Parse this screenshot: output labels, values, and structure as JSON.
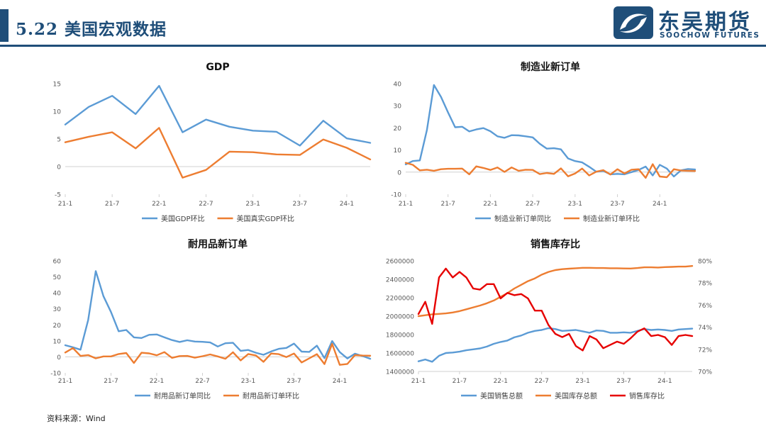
{
  "header": {
    "title": "5.22 美国宏观数据"
  },
  "logo": {
    "name_cn": "东吴期货",
    "name_en": "SOOCHOW FUTURES"
  },
  "footer": {
    "source": "资料来源：Wind"
  },
  "colors": {
    "blue": "#5b9bd5",
    "orange": "#ed7d31",
    "red": "#e60000",
    "brand": "#1f4e79"
  },
  "chart_data": [
    {
      "id": "gdp",
      "type": "line",
      "title": "GDP",
      "x_tick_labels": [
        "21-1",
        "21-7",
        "22-1",
        "22-7",
        "23-1",
        "23-7",
        "24-1"
      ],
      "x_tick_positions": [
        0,
        2,
        4,
        6,
        8,
        10,
        12
      ],
      "ylim": [
        -5,
        15
      ],
      "yticks": [
        -5,
        0,
        5,
        10,
        15
      ],
      "grid": false,
      "legend": "bottom",
      "series": [
        {
          "name": "美国GDP环比",
          "color": "#5b9bd5",
          "values": [
            7.6,
            10.8,
            12.8,
            9.5,
            14.6,
            6.2,
            8.5,
            7.2,
            6.5,
            6.3,
            3.8,
            8.3,
            5.1,
            4.3
          ]
        },
        {
          "name": "美国真实GDP环比",
          "color": "#ed7d31",
          "values": [
            4.4,
            5.4,
            6.2,
            3.3,
            7.0,
            -2.0,
            -0.6,
            2.7,
            2.6,
            2.2,
            2.1,
            4.9,
            3.4,
            1.3
          ]
        }
      ]
    },
    {
      "id": "manufacturing-orders",
      "type": "line",
      "title": "制造业新订单",
      "x_tick_labels": [
        "21-1",
        "21-7",
        "22-1",
        "22-7",
        "23-1",
        "23-7",
        "24-1"
      ],
      "x_tick_positions": [
        0,
        6,
        12,
        18,
        24,
        30,
        36
      ],
      "ylim": [
        -10,
        40
      ],
      "yticks": [
        -10,
        0,
        10,
        20,
        30,
        40
      ],
      "grid": false,
      "legend": "bottom",
      "series": [
        {
          "name": "制造业新订单同比",
          "color": "#5b9bd5",
          "values": [
            3.5,
            5,
            5.3,
            19,
            39.4,
            34,
            27,
            20.3,
            20.5,
            18.4,
            19.3,
            19.9,
            18.5,
            16.2,
            15.5,
            16.7,
            16.6,
            16.2,
            15.7,
            12.8,
            10.6,
            10.8,
            10.3,
            6.2,
            5,
            4.4,
            2.4,
            0.2,
            0.5,
            -1,
            -0.8,
            -1,
            0,
            1,
            2.5,
            -1.5,
            3.3,
            1.6,
            -2,
            0.8,
            1.4,
            1.2
          ]
        },
        {
          "name": "制造业新订单环比",
          "color": "#ed7d31",
          "values": [
            4.2,
            3.3,
            0.8,
            1.1,
            0.6,
            1.3,
            1.5,
            1.5,
            1.6,
            -1,
            2.6,
            1.9,
            1,
            2.1,
            0.1,
            2.1,
            0.6,
            1.1,
            1,
            -0.9,
            -0.4,
            -0.8,
            1.7,
            -1.9,
            -0.6,
            1.6,
            -1.5,
            0.2,
            0.9,
            -1.1,
            1.3,
            -0.6,
            1.1,
            1.3,
            -2.6,
            3.6,
            -2,
            -2.3,
            1.3,
            0.7,
            0.6,
            0.5
          ]
        }
      ]
    },
    {
      "id": "durable-goods",
      "type": "line",
      "title": "耐用品新订单",
      "x_tick_labels": [
        "21-1",
        "21-7",
        "22-1",
        "22-7",
        "23-1",
        "23-7",
        "24-1"
      ],
      "x_tick_positions": [
        0,
        6,
        12,
        18,
        24,
        30,
        36
      ],
      "ylim": [
        -10,
        60
      ],
      "yticks": [
        -10,
        0,
        10,
        20,
        30,
        40,
        50,
        60
      ],
      "grid": false,
      "legend": "bottom",
      "series": [
        {
          "name": "耐用品新订单同比",
          "color": "#5b9bd5",
          "values": [
            7.3,
            6,
            4.5,
            23,
            53.6,
            38,
            28,
            16,
            16.8,
            12.2,
            11.8,
            13.8,
            14,
            12.2,
            10.5,
            9.3,
            10.4,
            9.6,
            9.4,
            9,
            6.5,
            8.5,
            8.8,
            3.8,
            4.3,
            2.6,
            1.3,
            3.4,
            5,
            5.6,
            8.3,
            3.3,
            3.1,
            7,
            -0.8,
            9.9,
            3,
            -1,
            2,
            0.5,
            -1.2
          ]
        },
        {
          "name": "耐用品新订单环比",
          "color": "#ed7d31",
          "values": [
            2.7,
            5.5,
            0.6,
            1.1,
            -0.9,
            0.3,
            0.3,
            1.8,
            2.4,
            -3.8,
            2.6,
            2.2,
            1,
            3,
            -0.6,
            0.5,
            0.6,
            -0.5,
            0.4,
            1.5,
            0.3,
            -1.2,
            2.9,
            -2.2,
            1.8,
            0.9,
            -3.1,
            2.1,
            1.7,
            -0.1,
            2.1,
            -3.5,
            -0.9,
            1.7,
            -4.5,
            8.1,
            -5,
            -4.4,
            1.1,
            0.8,
            0.7
          ]
        }
      ]
    },
    {
      "id": "sales-inventory",
      "type": "line",
      "title": "销售库存比",
      "x_tick_labels": [
        "21-1",
        "21-7",
        "22-1",
        "22-7",
        "23-1",
        "23-7",
        "24-1"
      ],
      "x_tick_positions": [
        0,
        6,
        12,
        18,
        24,
        30,
        36
      ],
      "ylim": [
        1400000,
        2600000
      ],
      "yticks": [
        1400000,
        1600000,
        1800000,
        2000000,
        2200000,
        2400000,
        2600000
      ],
      "y2lim": [
        70,
        80
      ],
      "y2ticks": [
        70,
        72,
        74,
        76,
        78,
        80
      ],
      "y2_tick_suffix": "%",
      "grid": false,
      "legend": "bottom",
      "series": [
        {
          "name": "美国销售总额",
          "color": "#5b9bd5",
          "axis": "left",
          "values": [
            1510000,
            1530000,
            1505000,
            1570000,
            1600000,
            1605000,
            1615000,
            1630000,
            1640000,
            1650000,
            1670000,
            1700000,
            1720000,
            1735000,
            1770000,
            1790000,
            1820000,
            1840000,
            1850000,
            1870000,
            1860000,
            1840000,
            1845000,
            1850000,
            1835000,
            1820000,
            1845000,
            1840000,
            1820000,
            1820000,
            1825000,
            1820000,
            1840000,
            1860000,
            1850000,
            1855000,
            1850000,
            1840000,
            1855000,
            1860000,
            1865000
          ]
        },
        {
          "name": "美国库存总额",
          "color": "#ed7d31",
          "axis": "left",
          "values": [
            2000000,
            2010000,
            2020000,
            2025000,
            2030000,
            2040000,
            2055000,
            2075000,
            2095000,
            2115000,
            2140000,
            2170000,
            2210000,
            2250000,
            2300000,
            2340000,
            2380000,
            2410000,
            2450000,
            2480000,
            2500000,
            2510000,
            2515000,
            2520000,
            2525000,
            2525000,
            2522000,
            2522000,
            2520000,
            2520000,
            2518000,
            2517000,
            2522000,
            2530000,
            2530000,
            2528000,
            2532000,
            2535000,
            2538000,
            2538000,
            2545000
          ]
        },
        {
          "name": "销售库存比",
          "color": "#e60000",
          "axis": "right",
          "values": [
            75.2,
            76.3,
            74.3,
            78.5,
            79.3,
            78.5,
            79,
            78.5,
            77.5,
            77.4,
            77.9,
            77.9,
            76.6,
            77.1,
            76.9,
            77,
            76.6,
            75.5,
            75.5,
            74.2,
            73.4,
            73.1,
            73.4,
            72.3,
            71.9,
            73.2,
            72.9,
            72.1,
            72.4,
            72.7,
            72.5,
            73,
            73.6,
            73.9,
            73.2,
            73.3,
            73.1,
            72.4,
            73.2,
            73.3,
            73.2
          ]
        }
      ]
    }
  ]
}
